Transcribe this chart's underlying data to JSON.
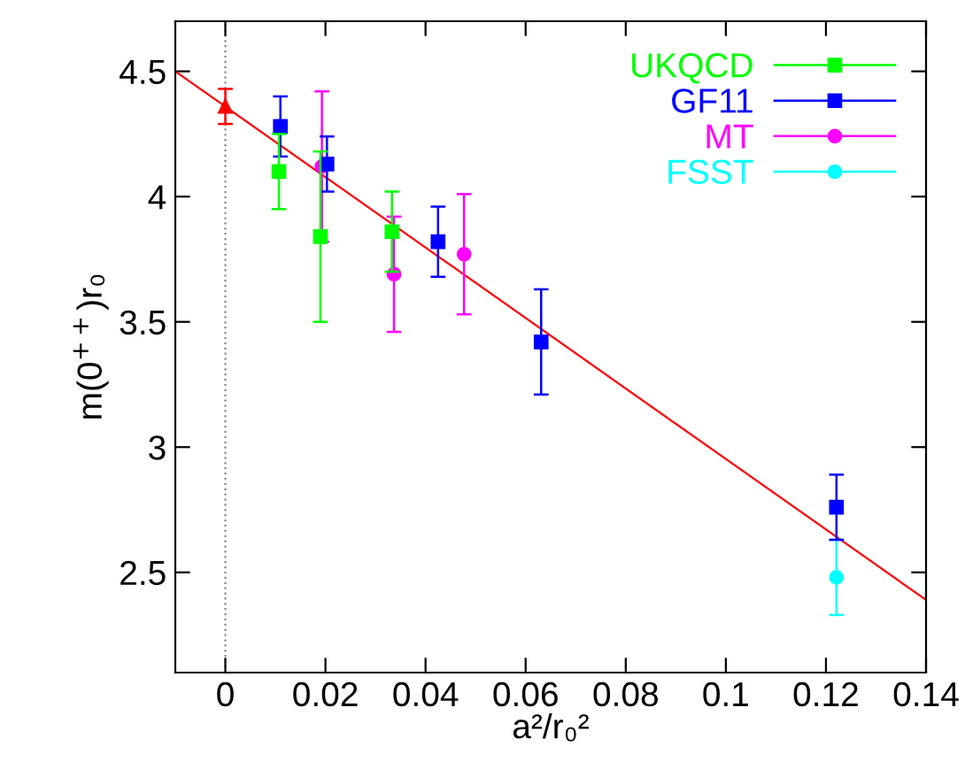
{
  "chart_data": {
    "type": "scatter",
    "xlabel": "a²/r₀²",
    "ylabel": "m(0$^{++}$)r₀",
    "xlim": [
      -0.01,
      0.14
    ],
    "ylim": [
      2.1,
      4.7
    ],
    "xticks": [
      0,
      0.02,
      0.04,
      0.06,
      0.08,
      0.1,
      0.12,
      0.14
    ],
    "yticks": [
      2.5,
      3,
      3.5,
      4,
      4.5
    ],
    "grid": false,
    "legend": "top right",
    "ref_lines": [
      {
        "axis": "x",
        "value": 0,
        "color": "#888888",
        "line_style": "dotted"
      }
    ],
    "series": [
      {
        "name": "UKQCD",
        "color": "#00ff00",
        "marker": "square",
        "x": [
          0.0107,
          0.019,
          0.0333
        ],
        "values": [
          4.1,
          3.84,
          3.86
        ],
        "errors": [
          0.15,
          0.34,
          0.16
        ]
      },
      {
        "name": "GF11",
        "color": "#0000ff",
        "marker": "square",
        "x": [
          0.011,
          0.0203,
          0.0425,
          0.0631,
          0.1221
        ],
        "values": [
          4.28,
          4.13,
          3.82,
          3.42,
          2.76
        ],
        "errors": [
          0.12,
          0.11,
          0.14,
          0.21,
          0.13
        ]
      },
      {
        "name": "MT",
        "color": "#ff00ff",
        "marker": "circle",
        "x": [
          0.0193,
          0.0337,
          0.0477
        ],
        "values": [
          4.12,
          3.69,
          3.77
        ],
        "errors": [
          0.3,
          0.23,
          0.24
        ]
      },
      {
        "name": "FSST",
        "color": "#00ffff",
        "marker": "circle",
        "x": [
          0.1221
        ],
        "values": [
          2.48
        ],
        "errors": [
          0.15
        ]
      },
      {
        "color": "#ff0000",
        "marker": "triangle",
        "x": [
          0
        ],
        "values": [
          4.36
        ],
        "errors": [
          0.07
        ]
      },
      {
        "type": "line",
        "color": "#ff0000",
        "marker": "none",
        "line_style": "solid",
        "x": [
          -0.01,
          0.14
        ],
        "values": [
          4.5,
          2.39
        ]
      }
    ]
  }
}
